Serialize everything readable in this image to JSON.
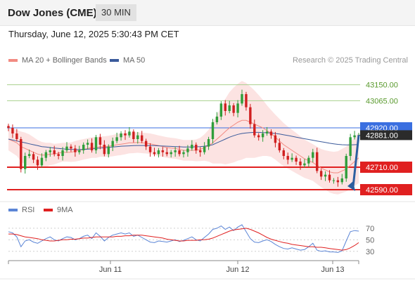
{
  "header": {
    "title": "Dow Jones (CME)",
    "timeframe": "30 MIN"
  },
  "datetime": "Thursday, June 12, 2025 5:30:43 PM CET",
  "legend": {
    "ma20": {
      "label": "MA 20 + Bollinger Bands",
      "color": "#f28b82"
    },
    "ma50": {
      "label": "MA 50",
      "color": "#3a5a9b"
    },
    "credit": "Research © 2025 Trading Central"
  },
  "rsi_legend": {
    "rsi": {
      "label": "RSI",
      "color": "#5b85d6"
    },
    "ma9": {
      "label": "9MA",
      "color": "#e02020"
    }
  },
  "chart_data": [
    {
      "type": "candlestick",
      "ylim": [
        42545,
        43235
      ],
      "x_ticks": [
        "Jun 11",
        "Jun 12",
        "Jun 13"
      ],
      "resistance_levels": [
        "43150.00",
        "43065.00"
      ],
      "support_levels": [
        "42710.00",
        "42590.00"
      ],
      "pivot_level": "42920.00",
      "last_price": "42881.00",
      "closes": [
        42920,
        42890,
        42860,
        42700,
        42770,
        42780,
        42750,
        42720,
        42760,
        42790,
        42800,
        42780,
        42770,
        42800,
        42820,
        42810,
        42790,
        42800,
        42830,
        42840,
        42800,
        42870,
        42830,
        42780,
        42820,
        42850,
        42870,
        42890,
        42880,
        42900,
        42860,
        42880,
        42850,
        42820,
        42790,
        42780,
        42800,
        42790,
        42780,
        42790,
        42800,
        42780,
        42790,
        42810,
        42830,
        42800,
        42790,
        42820,
        42860,
        42950,
        42980,
        43050,
        43010,
        43040,
        43000,
        43050,
        43100,
        43030,
        42940,
        42880,
        42870,
        42890,
        42900,
        42880,
        42840,
        42800,
        42770,
        42750,
        42760,
        42740,
        42720,
        42730,
        42760,
        42790,
        42690,
        42660,
        42670,
        42640,
        42640,
        42630,
        42650,
        42770,
        42870,
        42880,
        42881
      ],
      "ma20": [
        42860,
        42850,
        42840,
        42820,
        42810,
        42800,
        42790,
        42780,
        42775,
        42775,
        42780,
        42780,
        42785,
        42790,
        42790,
        42790,
        42795,
        42800,
        42805,
        42810,
        42815,
        42815,
        42820,
        42820,
        42822,
        42825,
        42830,
        42833,
        42836,
        42840,
        42840,
        42842,
        42840,
        42838,
        42835,
        42830,
        42825,
        42820,
        42815,
        42812,
        42810,
        42805,
        42800,
        42800,
        42800,
        42800,
        42805,
        42815,
        42825,
        42840,
        42860,
        42880,
        42900,
        42920,
        42935,
        42950,
        42960,
        42960,
        42950,
        42940,
        42930,
        42920,
        42905,
        42890,
        42870,
        42850,
        42830,
        42815,
        42800,
        42785,
        42770,
        42755,
        42745,
        42735,
        42720,
        42705,
        42695,
        42685,
        42680,
        42680,
        42690,
        42700,
        42720,
        42740,
        42760
      ],
      "ma50": [
        42860,
        42855,
        42850,
        42845,
        42840,
        42835,
        42830,
        42825,
        42820,
        42818,
        42815,
        42812,
        42810,
        42808,
        42806,
        42805,
        42804,
        42804,
        42805,
        42806,
        42808,
        42810,
        42812,
        42814,
        42816,
        42818,
        42820,
        42822,
        42823,
        42824,
        42825,
        42826,
        42826,
        42826,
        42826,
        42825,
        42824,
        42823,
        42822,
        42821,
        42820,
        42819,
        42818,
        42818,
        42818,
        42819,
        42820,
        42822,
        42825,
        42830,
        42840,
        42850,
        42860,
        42870,
        42878,
        42885,
        42890,
        42893,
        42895,
        42896,
        42896,
        42895,
        42894,
        42892,
        42890,
        42887,
        42883,
        42879,
        42875,
        42870,
        42866,
        42862,
        42858,
        42854,
        42850,
        42846,
        42842,
        42838,
        42835,
        42832,
        42830,
        42829,
        42829,
        42830,
        42831
      ],
      "bb_width": [
        60,
        65,
        70,
        80,
        85,
        85,
        80,
        75,
        70,
        65,
        60,
        55,
        52,
        50,
        50,
        52,
        55,
        55,
        55,
        55,
        55,
        55,
        55,
        55,
        56,
        57,
        58,
        58,
        57,
        56,
        55,
        55,
        55,
        55,
        55,
        55,
        55,
        55,
        55,
        55,
        55,
        55,
        55,
        55,
        56,
        58,
        62,
        70,
        85,
        110,
        130,
        150,
        175,
        190,
        200,
        205,
        210,
        200,
        190,
        180,
        165,
        150,
        135,
        125,
        120,
        118,
        115,
        112,
        110,
        108,
        105,
        102,
        100,
        98,
        100,
        102,
        105,
        110,
        112,
        115,
        118,
        120,
        125,
        130,
        135
      ],
      "rsi_ylim": [
        20,
        82
      ],
      "rsi_ticks": [
        "70",
        "50",
        "30"
      ],
      "rsi": [
        64,
        62,
        55,
        38,
        48,
        50,
        46,
        44,
        48,
        52,
        55,
        50,
        48,
        52,
        55,
        54,
        50,
        52,
        56,
        58,
        52,
        62,
        56,
        48,
        54,
        58,
        60,
        62,
        60,
        62,
        56,
        58,
        54,
        50,
        46,
        45,
        48,
        47,
        46,
        48,
        50,
        47,
        49,
        52,
        55,
        50,
        48,
        54,
        60,
        68,
        70,
        74,
        68,
        72,
        66,
        72,
        76,
        64,
        52,
        46,
        45,
        48,
        50,
        47,
        42,
        38,
        35,
        34,
        36,
        34,
        32,
        33,
        38,
        44,
        32,
        30,
        31,
        29,
        29,
        28,
        31,
        48,
        64,
        66,
        65
      ],
      "rsi_ma9": [
        60,
        60,
        59,
        57,
        55,
        54,
        53,
        52,
        50,
        49,
        48,
        48,
        49,
        50,
        50,
        51,
        51,
        52,
        53,
        53,
        54,
        55,
        55,
        55,
        55,
        55,
        56,
        56,
        57,
        57,
        58,
        58,
        58,
        57,
        56,
        55,
        54,
        53,
        51,
        50,
        49,
        48,
        48,
        49,
        49,
        49,
        50,
        50,
        51,
        53,
        56,
        59,
        62,
        65,
        67,
        68,
        69,
        70,
        68,
        65,
        62,
        58,
        54,
        51,
        49,
        47,
        45,
        44,
        42,
        41,
        40,
        39,
        38,
        38,
        37,
        37,
        36,
        35,
        34,
        33,
        32,
        33,
        36,
        40,
        45
      ]
    }
  ]
}
